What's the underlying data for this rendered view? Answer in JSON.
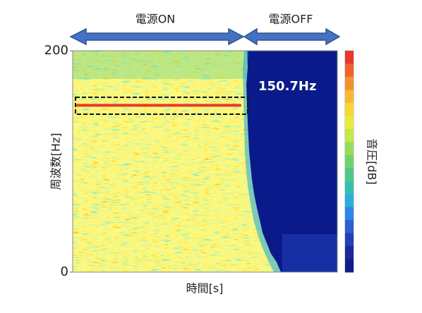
{
  "chart_data": {
    "type": "spectrogram",
    "xlabel": "時間[s]",
    "ylabel": "周波数[Hz]",
    "ylim": [
      0,
      200
    ],
    "yticks": [
      0,
      200
    ],
    "colorbar_label": "音圧[dB]",
    "colormap": [
      "#e8392a",
      "#f0642c",
      "#f5902e",
      "#f7b733",
      "#f3d83a",
      "#e6ec3f",
      "#c2e84a",
      "#98dd58",
      "#6fd46a",
      "#4cc98a",
      "#34bfb0",
      "#2aaedc",
      "#2f86e8",
      "#2c5fd8",
      "#2440b8",
      "#1a2a9a",
      "#0f1d88"
    ],
    "annotations": [
      "電源ON",
      "電源OFF"
    ],
    "peak": {
      "value": 150.7,
      "label": "150.7Hz",
      "color": "#e8392a"
    }
  }
}
